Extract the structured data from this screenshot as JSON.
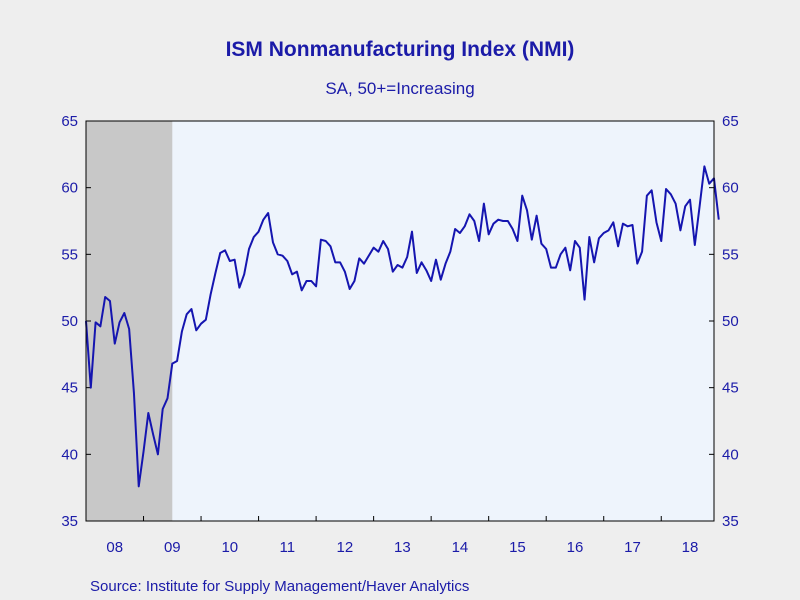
{
  "chart_data": {
    "type": "line",
    "title": "ISM Nonmanufacturing Index (NMI)",
    "subtitle": "SA, 50+=Increasing",
    "source": "Source:  Institute for Supply Management/Haver Analytics",
    "ylim": [
      35,
      65
    ],
    "yticks": [
      35,
      40,
      45,
      50,
      55,
      60,
      65
    ],
    "xlim": [
      2008.0,
      2018.917
    ],
    "xtick_labels": [
      "08",
      "09",
      "10",
      "11",
      "12",
      "13",
      "14",
      "15",
      "16",
      "17",
      "18"
    ],
    "recession_shading": {
      "start": 2008.0,
      "end": 2009.5,
      "color": "#c8c8c8"
    },
    "plot_background": "#eef4fc",
    "line_color": "#1515b0",
    "series": [
      {
        "x_start": 2008.0,
        "x_step_months": 1,
        "values": [
          50.0,
          45.0,
          49.9,
          49.6,
          51.8,
          51.5,
          48.3,
          49.9,
          50.6,
          49.4,
          44.6,
          37.6,
          40.2,
          43.1,
          41.5,
          40.0,
          43.4,
          44.2,
          46.8,
          47.0,
          49.2,
          50.5,
          50.9,
          49.3,
          49.8,
          50.1,
          52.0,
          53.6,
          55.1,
          55.3,
          54.5,
          54.6,
          52.5,
          53.5,
          55.4,
          56.3,
          56.7,
          57.6,
          58.1,
          55.9,
          55.0,
          54.9,
          54.5,
          53.5,
          53.7,
          52.3,
          53.0,
          53.0,
          52.6,
          56.1,
          56.0,
          55.6,
          54.4,
          54.4,
          53.7,
          52.4,
          53.0,
          54.7,
          54.3,
          54.9,
          55.5,
          55.2,
          56.0,
          55.4,
          53.7,
          54.2,
          54.0,
          54.8,
          56.7,
          53.6,
          54.4,
          53.8,
          53.0,
          54.6,
          53.1,
          54.3,
          55.2,
          56.9,
          56.6,
          57.1,
          58.0,
          57.5,
          56.0,
          58.8,
          56.5,
          57.3,
          57.6,
          57.5,
          57.5,
          56.9,
          56.0,
          59.4,
          58.3,
          56.1,
          57.9,
          55.8,
          55.4,
          54.0,
          54.0,
          55.0,
          55.5,
          53.8,
          56.0,
          55.5,
          51.6,
          56.3,
          54.4,
          56.2,
          56.6,
          56.8,
          57.4,
          55.6,
          57.3,
          57.1,
          57.2,
          54.3,
          55.2,
          59.4,
          59.8,
          57.4,
          56.0,
          59.9,
          59.5,
          58.8,
          56.8,
          58.6,
          59.1,
          55.7,
          58.6,
          61.6,
          60.3,
          60.7,
          57.6
        ]
      }
    ]
  }
}
